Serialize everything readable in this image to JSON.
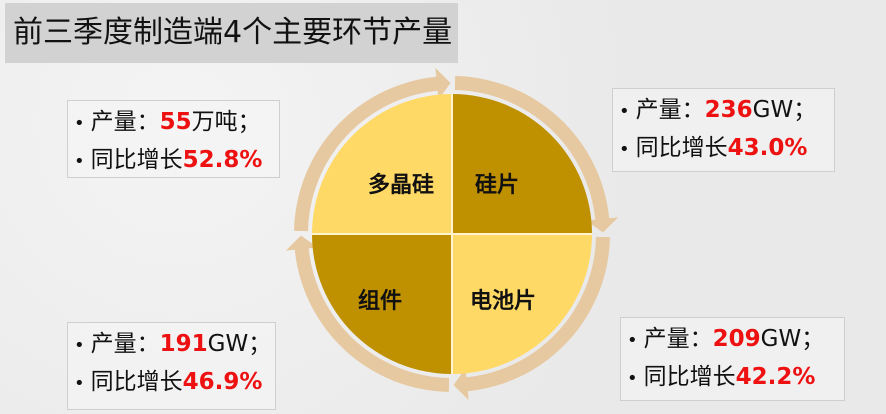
{
  "title": "前三季度制造端4个主要环节产量",
  "colors": {
    "light_quadrant": "#FFD966",
    "dark_quadrant": "#BF9000",
    "ring": "#E6C9A0",
    "highlight": "#EE1111"
  },
  "cycle": {
    "segments": [
      {
        "label": "多晶硅"
      },
      {
        "label": "硅片"
      },
      {
        "label": "电池片"
      },
      {
        "label": "组件"
      }
    ]
  },
  "stats": {
    "polysilicon": {
      "output_label": "产量：",
      "output_value": "55",
      "output_unit": "万吨；",
      "growth_label": "同比增长",
      "growth_value": "52.8%"
    },
    "wafer": {
      "output_label": "产量：",
      "output_value": "236",
      "output_unit": "GW；",
      "growth_label": "同比增长",
      "growth_value": "43.0%"
    },
    "cell": {
      "output_label": "产量：",
      "output_value": "209",
      "output_unit": "GW；",
      "growth_label": "同比增长",
      "growth_value": "42.2%"
    },
    "module": {
      "output_label": "产量：",
      "output_value": "191",
      "output_unit": "GW；",
      "growth_label": "同比增长",
      "growth_value": "46.9%"
    }
  }
}
